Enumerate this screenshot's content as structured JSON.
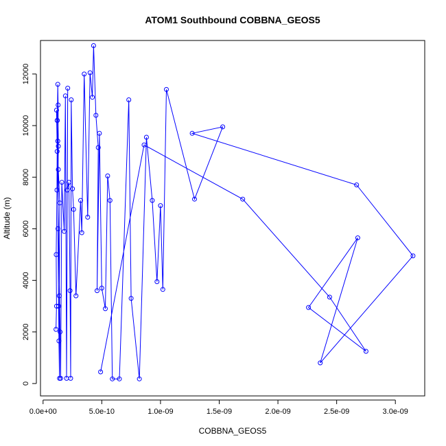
{
  "chart_data": {
    "type": "line",
    "title": "ATOM1 Southbound COBBNA_GEOS5",
    "xlabel": "COBBNA_GEOS5",
    "ylabel": "Altitude (m)",
    "xlim": [
      -2.2e-11,
      3.25e-09
    ],
    "ylim": [
      -480,
      13300
    ],
    "x_ticks": [
      0,
      5e-10,
      1e-09,
      1.5e-09,
      2e-09,
      2.5e-09,
      3e-09
    ],
    "x_tick_labels": [
      "0.0e+00",
      "5.0e-10",
      "1.0e-09",
      "1.5e-09",
      "2.0e-09",
      "2.5e-09",
      "3.0e-09"
    ],
    "y_ticks": [
      0,
      2000,
      4000,
      6000,
      8000,
      10000,
      12000
    ],
    "y_tick_labels": [
      "0",
      "2000",
      "4000",
      "6000",
      "8000",
      "10000",
      "12000"
    ],
    "grid": false,
    "series_color": "#0000ff",
    "series": [
      {
        "x": [
          1.1e-10,
          1.15e-10,
          1.12e-10,
          1.18e-10,
          1.2e-10,
          1.22e-10,
          1.25e-10,
          1.28e-10,
          1.3e-10,
          1.27e-10,
          1.32e-10,
          1.35e-10,
          1.4e-10,
          1.38e-10,
          1.42e-10,
          1.3e-10,
          1.25e-10,
          1.2e-10,
          1.15e-10,
          1.45e-10,
          1.5e-10,
          1.6e-10,
          1.8e-10,
          1.9e-10,
          2e-10,
          2.1e-10,
          2.05e-10,
          2.2e-10,
          2.3e-10,
          2.35e-10,
          2.4e-10,
          2.5e-10,
          2.6e-10,
          2.8e-10,
          3.2e-10,
          3.3e-10,
          3.5e-10,
          3.8e-10,
          4e-10,
          4.2e-10,
          4.3e-10,
          4.5e-10,
          4.7e-10,
          4.6e-10,
          4.8e-10,
          5e-10,
          5.3e-10,
          5.5e-10,
          5.7e-10,
          5.9e-10,
          6.5e-10,
          7.3e-10,
          7.5e-10,
          8.2e-10,
          8.8e-10,
          9.3e-10,
          9.7e-10,
          1e-09,
          1.02e-09,
          1.05e-09,
          1.29e-09,
          1.53e-09,
          1.27e-09,
          2.67e-09,
          3.15e-09,
          2.36e-09,
          2.68e-09,
          2.26e-09,
          2.75e-09,
          2.44e-09,
          1.7e-09,
          8.6e-10,
          4.9e-10
        ],
        "y": [
          2100,
          3000,
          5000,
          7500,
          9000,
          10200,
          11600,
          10800,
          9200,
          6000,
          3000,
          1650,
          200,
          3400,
          7000,
          8300,
          9400,
          10200,
          10600,
          2000,
          200,
          7800,
          5900,
          11150,
          200,
          11450,
          7500,
          7800,
          3600,
          200,
          11000,
          7550,
          6750,
          3400,
          7100,
          5850,
          12000,
          6450,
          12050,
          11100,
          13100,
          10400,
          9150,
          3600,
          9700,
          3700,
          2900,
          8050,
          7100,
          180,
          180,
          11000,
          3300,
          180,
          9550,
          7100,
          3950,
          6900,
          3650,
          11400,
          7150,
          9950,
          9700,
          7700,
          4950,
          800,
          5650,
          2950,
          1250,
          3350,
          7150,
          9250,
          450
        ]
      }
    ]
  }
}
